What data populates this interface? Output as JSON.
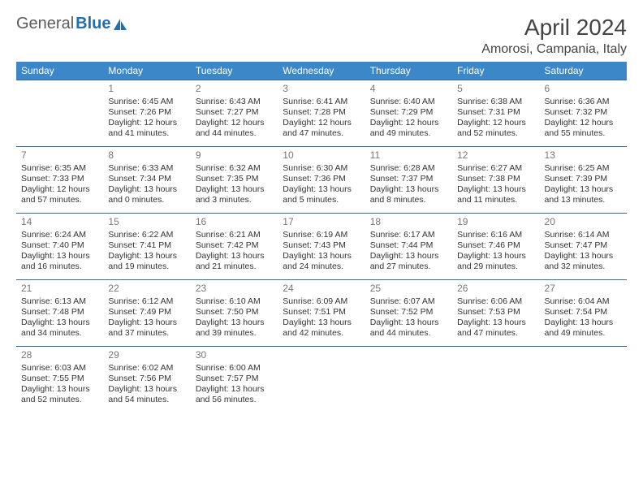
{
  "logo": {
    "part1": "General",
    "part2": "Blue"
  },
  "title": "April 2024",
  "location": "Amorosi, Campania, Italy",
  "colors": {
    "header_bg": "#3b87c8",
    "header_text": "#ffffff",
    "row_border": "#3b6a91",
    "daynum": "#777777",
    "body_text": "#333333",
    "logo_gray": "#5a5a5a",
    "logo_blue": "#1f6fb2"
  },
  "weekdays": [
    "Sunday",
    "Monday",
    "Tuesday",
    "Wednesday",
    "Thursday",
    "Friday",
    "Saturday"
  ],
  "grid": [
    [
      null,
      {
        "n": "1",
        "sr": "6:45 AM",
        "ss": "7:26 PM",
        "dl": "12 hours and 41 minutes."
      },
      {
        "n": "2",
        "sr": "6:43 AM",
        "ss": "7:27 PM",
        "dl": "12 hours and 44 minutes."
      },
      {
        "n": "3",
        "sr": "6:41 AM",
        "ss": "7:28 PM",
        "dl": "12 hours and 47 minutes."
      },
      {
        "n": "4",
        "sr": "6:40 AM",
        "ss": "7:29 PM",
        "dl": "12 hours and 49 minutes."
      },
      {
        "n": "5",
        "sr": "6:38 AM",
        "ss": "7:31 PM",
        "dl": "12 hours and 52 minutes."
      },
      {
        "n": "6",
        "sr": "6:36 AM",
        "ss": "7:32 PM",
        "dl": "12 hours and 55 minutes."
      }
    ],
    [
      {
        "n": "7",
        "sr": "6:35 AM",
        "ss": "7:33 PM",
        "dl": "12 hours and 57 minutes."
      },
      {
        "n": "8",
        "sr": "6:33 AM",
        "ss": "7:34 PM",
        "dl": "13 hours and 0 minutes."
      },
      {
        "n": "9",
        "sr": "6:32 AM",
        "ss": "7:35 PM",
        "dl": "13 hours and 3 minutes."
      },
      {
        "n": "10",
        "sr": "6:30 AM",
        "ss": "7:36 PM",
        "dl": "13 hours and 5 minutes."
      },
      {
        "n": "11",
        "sr": "6:28 AM",
        "ss": "7:37 PM",
        "dl": "13 hours and 8 minutes."
      },
      {
        "n": "12",
        "sr": "6:27 AM",
        "ss": "7:38 PM",
        "dl": "13 hours and 11 minutes."
      },
      {
        "n": "13",
        "sr": "6:25 AM",
        "ss": "7:39 PM",
        "dl": "13 hours and 13 minutes."
      }
    ],
    [
      {
        "n": "14",
        "sr": "6:24 AM",
        "ss": "7:40 PM",
        "dl": "13 hours and 16 minutes."
      },
      {
        "n": "15",
        "sr": "6:22 AM",
        "ss": "7:41 PM",
        "dl": "13 hours and 19 minutes."
      },
      {
        "n": "16",
        "sr": "6:21 AM",
        "ss": "7:42 PM",
        "dl": "13 hours and 21 minutes."
      },
      {
        "n": "17",
        "sr": "6:19 AM",
        "ss": "7:43 PM",
        "dl": "13 hours and 24 minutes."
      },
      {
        "n": "18",
        "sr": "6:17 AM",
        "ss": "7:44 PM",
        "dl": "13 hours and 27 minutes."
      },
      {
        "n": "19",
        "sr": "6:16 AM",
        "ss": "7:46 PM",
        "dl": "13 hours and 29 minutes."
      },
      {
        "n": "20",
        "sr": "6:14 AM",
        "ss": "7:47 PM",
        "dl": "13 hours and 32 minutes."
      }
    ],
    [
      {
        "n": "21",
        "sr": "6:13 AM",
        "ss": "7:48 PM",
        "dl": "13 hours and 34 minutes."
      },
      {
        "n": "22",
        "sr": "6:12 AM",
        "ss": "7:49 PM",
        "dl": "13 hours and 37 minutes."
      },
      {
        "n": "23",
        "sr": "6:10 AM",
        "ss": "7:50 PM",
        "dl": "13 hours and 39 minutes."
      },
      {
        "n": "24",
        "sr": "6:09 AM",
        "ss": "7:51 PM",
        "dl": "13 hours and 42 minutes."
      },
      {
        "n": "25",
        "sr": "6:07 AM",
        "ss": "7:52 PM",
        "dl": "13 hours and 44 minutes."
      },
      {
        "n": "26",
        "sr": "6:06 AM",
        "ss": "7:53 PM",
        "dl": "13 hours and 47 minutes."
      },
      {
        "n": "27",
        "sr": "6:04 AM",
        "ss": "7:54 PM",
        "dl": "13 hours and 49 minutes."
      }
    ],
    [
      {
        "n": "28",
        "sr": "6:03 AM",
        "ss": "7:55 PM",
        "dl": "13 hours and 52 minutes."
      },
      {
        "n": "29",
        "sr": "6:02 AM",
        "ss": "7:56 PM",
        "dl": "13 hours and 54 minutes."
      },
      {
        "n": "30",
        "sr": "6:00 AM",
        "ss": "7:57 PM",
        "dl": "13 hours and 56 minutes."
      },
      null,
      null,
      null,
      null
    ]
  ],
  "labels": {
    "sunrise": "Sunrise: ",
    "sunset": "Sunset: ",
    "daylight": "Daylight: "
  }
}
